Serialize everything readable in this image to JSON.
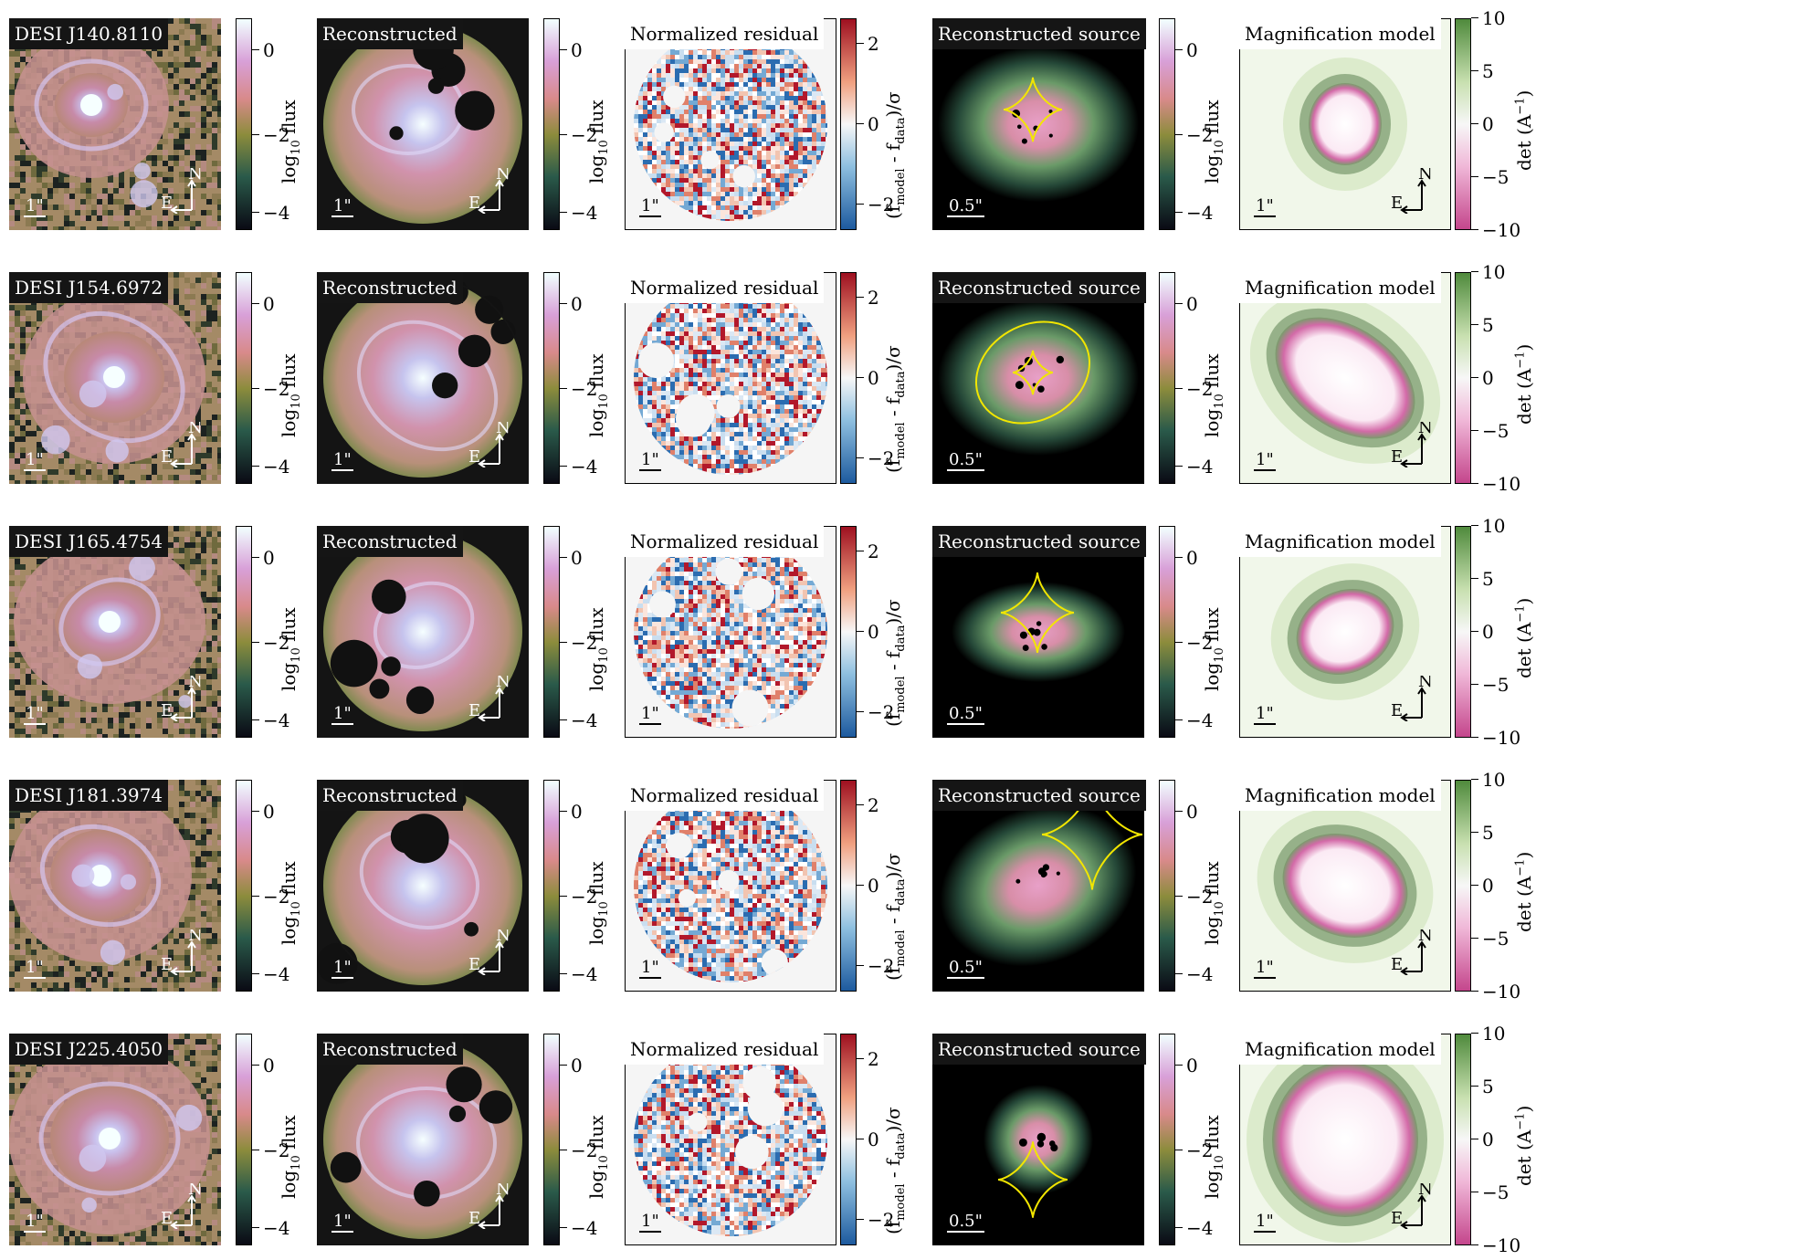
{
  "panel_titles": {
    "reconstructed": "Reconstructed",
    "residual": "Normalized residual",
    "source": "Reconstructed source",
    "magnification": "Magnification model"
  },
  "compass": {
    "north": "N",
    "east": "E"
  },
  "colorbars": {
    "flux": {
      "label_main": "log",
      "label_sub": "10",
      "label_rest": " flux",
      "ticks": [
        "0",
        "−2",
        "−4"
      ]
    },
    "residual": {
      "label_a": "(f",
      "label_sub1": "model",
      "label_b": " - f",
      "label_sub2": "data",
      "label_c": ")/σ",
      "ticks": [
        "2",
        "0",
        "−2"
      ]
    },
    "magnification": {
      "label_a": "det (A",
      "label_sup": "−1",
      "label_b": ")",
      "ticks": [
        "10",
        "5",
        "0",
        "−5",
        "−10"
      ]
    }
  },
  "rows": [
    {
      "name": "DESI J140.8110",
      "scale_image": "1\"",
      "scale_source": "0.5\""
    },
    {
      "name": "DESI J154.6972",
      "scale_image": "1\"",
      "scale_source": "0.5\""
    },
    {
      "name": "DESI J165.4754",
      "scale_image": "1\"",
      "scale_source": "0.5\""
    },
    {
      "name": "DESI J181.3974",
      "scale_image": "1\"",
      "scale_source": "0.5\""
    },
    {
      "name": "DESI J225.4050",
      "scale_image": "1\"",
      "scale_source": "0.5\""
    }
  ],
  "colors": {
    "caustic": "#f2e600",
    "mask": "#111111",
    "positive_residual": "#b2182b",
    "negative_residual": "#2166ac",
    "magnification_positive": "#5a8a4a",
    "magnification_negative": "#d65f9e"
  }
}
